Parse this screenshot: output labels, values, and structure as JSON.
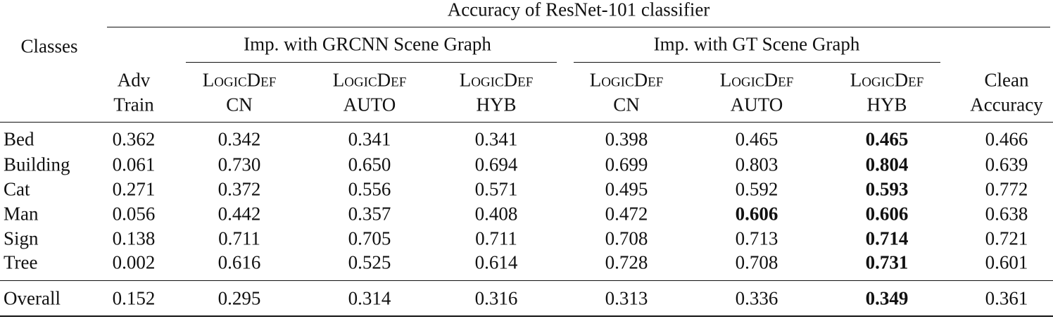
{
  "title": "Accuracy of ResNet-101 classifier",
  "stub_header": "Classes",
  "groups": [
    "Imp. with GRCNN Scene Graph",
    "Imp. with GT Scene Graph"
  ],
  "columns": [
    [
      "Adv",
      "Train"
    ],
    [
      "LogicDef",
      "CN"
    ],
    [
      "LogicDef",
      "AUTO"
    ],
    [
      "LogicDef",
      "HYB"
    ],
    [
      "LogicDef",
      "CN"
    ],
    [
      "LogicDef",
      "AUTO"
    ],
    [
      "LogicDef",
      "HYB"
    ],
    [
      "Clean",
      "Accuracy"
    ]
  ],
  "rows": [
    [
      "Bed",
      "0.362",
      "0.342",
      "0.341",
      "0.341",
      "0.398",
      "0.465",
      {
        "text": "0.465",
        "bold": true
      },
      "0.466"
    ],
    [
      "Building",
      "0.061",
      "0.730",
      "0.650",
      "0.694",
      "0.699",
      "0.803",
      {
        "text": "0.804",
        "bold": true
      },
      "0.639"
    ],
    [
      "Cat",
      "0.271",
      "0.372",
      "0.556",
      "0.571",
      "0.495",
      "0.592",
      {
        "text": "0.593",
        "bold": true
      },
      "0.772"
    ],
    [
      "Man",
      "0.056",
      "0.442",
      "0.357",
      "0.408",
      "0.472",
      {
        "text": "0.606",
        "bold": true
      },
      {
        "text": "0.606",
        "bold": true
      },
      "0.638"
    ],
    [
      "Sign",
      "0.138",
      "0.711",
      "0.705",
      "0.711",
      "0.708",
      "0.713",
      {
        "text": "0.714",
        "bold": true
      },
      "0.721"
    ],
    [
      "Tree",
      "0.002",
      "0.616",
      "0.525",
      "0.614",
      "0.728",
      "0.708",
      {
        "text": "0.731",
        "bold": true
      },
      "0.601"
    ]
  ],
  "footer_row": [
    "Overall",
    "0.152",
    "0.295",
    "0.314",
    "0.316",
    "0.313",
    "0.336",
    {
      "text": "0.349",
      "bold": true
    },
    "0.361"
  ]
}
